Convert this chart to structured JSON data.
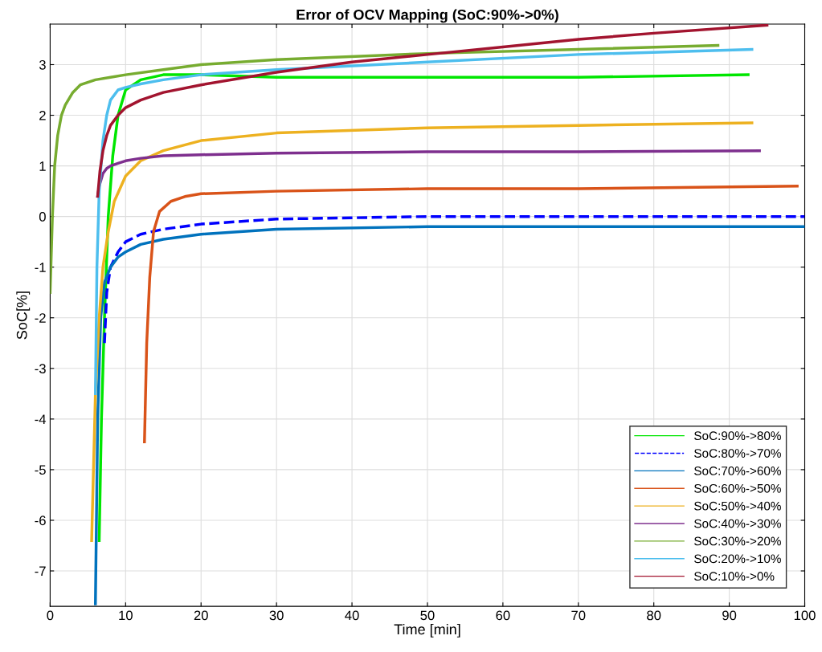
{
  "chart_data": {
    "type": "line",
    "title": "Error of OCV Mapping (SoC:90%->0%)",
    "xlabel": "Time [min]",
    "ylabel": "SoC[%]",
    "xlim": [
      0,
      100
    ],
    "xticks": [
      0,
      10,
      20,
      30,
      40,
      50,
      60,
      70,
      80,
      90,
      100
    ],
    "ylim": [
      -7.7,
      3.8
    ],
    "yticks": [
      -7,
      -6,
      -5,
      -4,
      -3,
      -2,
      -1,
      0,
      1,
      2,
      3
    ],
    "grid": true,
    "legend": "bottom right",
    "marker": "none",
    "series": [
      {
        "name": "SoC:90%->80%",
        "color": "#00e600",
        "line_style": "solid",
        "x": [
          6.5,
          6.8,
          7.2,
          7.7,
          8.3,
          9,
          10,
          12,
          15,
          20,
          30,
          50,
          70,
          92.5
        ],
        "values": [
          -6.4,
          -4,
          -2,
          0,
          1.2,
          2.0,
          2.5,
          2.7,
          2.8,
          2.8,
          2.75,
          2.75,
          2.75,
          2.8
        ]
      },
      {
        "name": "SoC:80%->70%",
        "color": "#0000ff",
        "line_style": "dashed",
        "x": [
          7.2,
          7.5,
          8,
          9,
          10,
          12,
          15,
          20,
          30,
          50,
          70,
          100
        ],
        "values": [
          -2.5,
          -1.5,
          -1.0,
          -0.7,
          -0.5,
          -0.35,
          -0.25,
          -0.15,
          -0.05,
          0.0,
          0.0,
          0.0
        ]
      },
      {
        "name": "SoC:70%->60%",
        "color": "#0072bd",
        "line_style": "solid",
        "x": [
          6,
          6.3,
          6.7,
          7.2,
          8,
          9,
          10,
          12,
          15,
          20,
          30,
          50,
          70,
          100
        ],
        "values": [
          -7.65,
          -4,
          -2,
          -1.3,
          -1.0,
          -0.8,
          -0.7,
          -0.55,
          -0.45,
          -0.35,
          -0.25,
          -0.2,
          -0.2,
          -0.2
        ]
      },
      {
        "name": "SoC:60%->50%",
        "color": "#d95319",
        "line_style": "solid",
        "x": [
          12.5,
          12.8,
          13.2,
          13.7,
          14.5,
          16,
          18,
          20,
          30,
          50,
          70,
          99
        ],
        "values": [
          -4.45,
          -2.5,
          -1.2,
          -0.3,
          0.1,
          0.3,
          0.4,
          0.45,
          0.5,
          0.55,
          0.55,
          0.6
        ]
      },
      {
        "name": "SoC:50%->40%",
        "color": "#edb120",
        "line_style": "solid",
        "x": [
          5.5,
          6,
          6.5,
          7,
          7.7,
          8.5,
          10,
          12,
          15,
          20,
          30,
          50,
          70,
          93
        ],
        "values": [
          -6.4,
          -3.5,
          -2,
          -1,
          -0.3,
          0.3,
          0.8,
          1.1,
          1.3,
          1.5,
          1.65,
          1.75,
          1.8,
          1.85
        ]
      },
      {
        "name": "SoC:40%->30%",
        "color": "#7e2f8e",
        "line_style": "solid",
        "x": [
          6.3,
          6.5,
          7,
          7.5,
          8,
          9,
          10,
          12,
          15,
          20,
          30,
          50,
          70,
          94
        ],
        "values": [
          0.4,
          0.6,
          0.85,
          0.95,
          1.0,
          1.05,
          1.1,
          1.15,
          1.2,
          1.22,
          1.25,
          1.28,
          1.28,
          1.3
        ]
      },
      {
        "name": "SoC:30%->20%",
        "color": "#77ac30",
        "line_style": "solid",
        "x": [
          0,
          0.3,
          0.6,
          1,
          1.5,
          2,
          3,
          4,
          6,
          8,
          10,
          15,
          20,
          30,
          50,
          70,
          88.5
        ],
        "values": [
          -1.5,
          0,
          1.0,
          1.6,
          2.0,
          2.2,
          2.45,
          2.6,
          2.7,
          2.75,
          2.8,
          2.9,
          3.0,
          3.1,
          3.22,
          3.3,
          3.38
        ]
      },
      {
        "name": "SoC:20%->10%",
        "color": "#4dbeee",
        "line_style": "solid",
        "x": [
          6,
          6.2,
          6.5,
          7,
          7.5,
          8,
          9,
          10,
          12,
          15,
          20,
          30,
          50,
          70,
          93
        ],
        "values": [
          -3.5,
          -1.0,
          0.5,
          1.5,
          2.0,
          2.3,
          2.5,
          2.55,
          2.62,
          2.7,
          2.8,
          2.9,
          3.05,
          3.2,
          3.3
        ]
      },
      {
        "name": "SoC:10%->0%",
        "color": "#a2142f",
        "line_style": "solid",
        "x": [
          6.3,
          6.6,
          7,
          7.5,
          8,
          9,
          10,
          12,
          15,
          20,
          30,
          40,
          50,
          60,
          70,
          80,
          95
        ],
        "values": [
          0.4,
          0.9,
          1.3,
          1.6,
          1.8,
          2.0,
          2.15,
          2.3,
          2.45,
          2.6,
          2.85,
          3.05,
          3.2,
          3.35,
          3.5,
          3.62,
          3.78
        ]
      }
    ]
  }
}
